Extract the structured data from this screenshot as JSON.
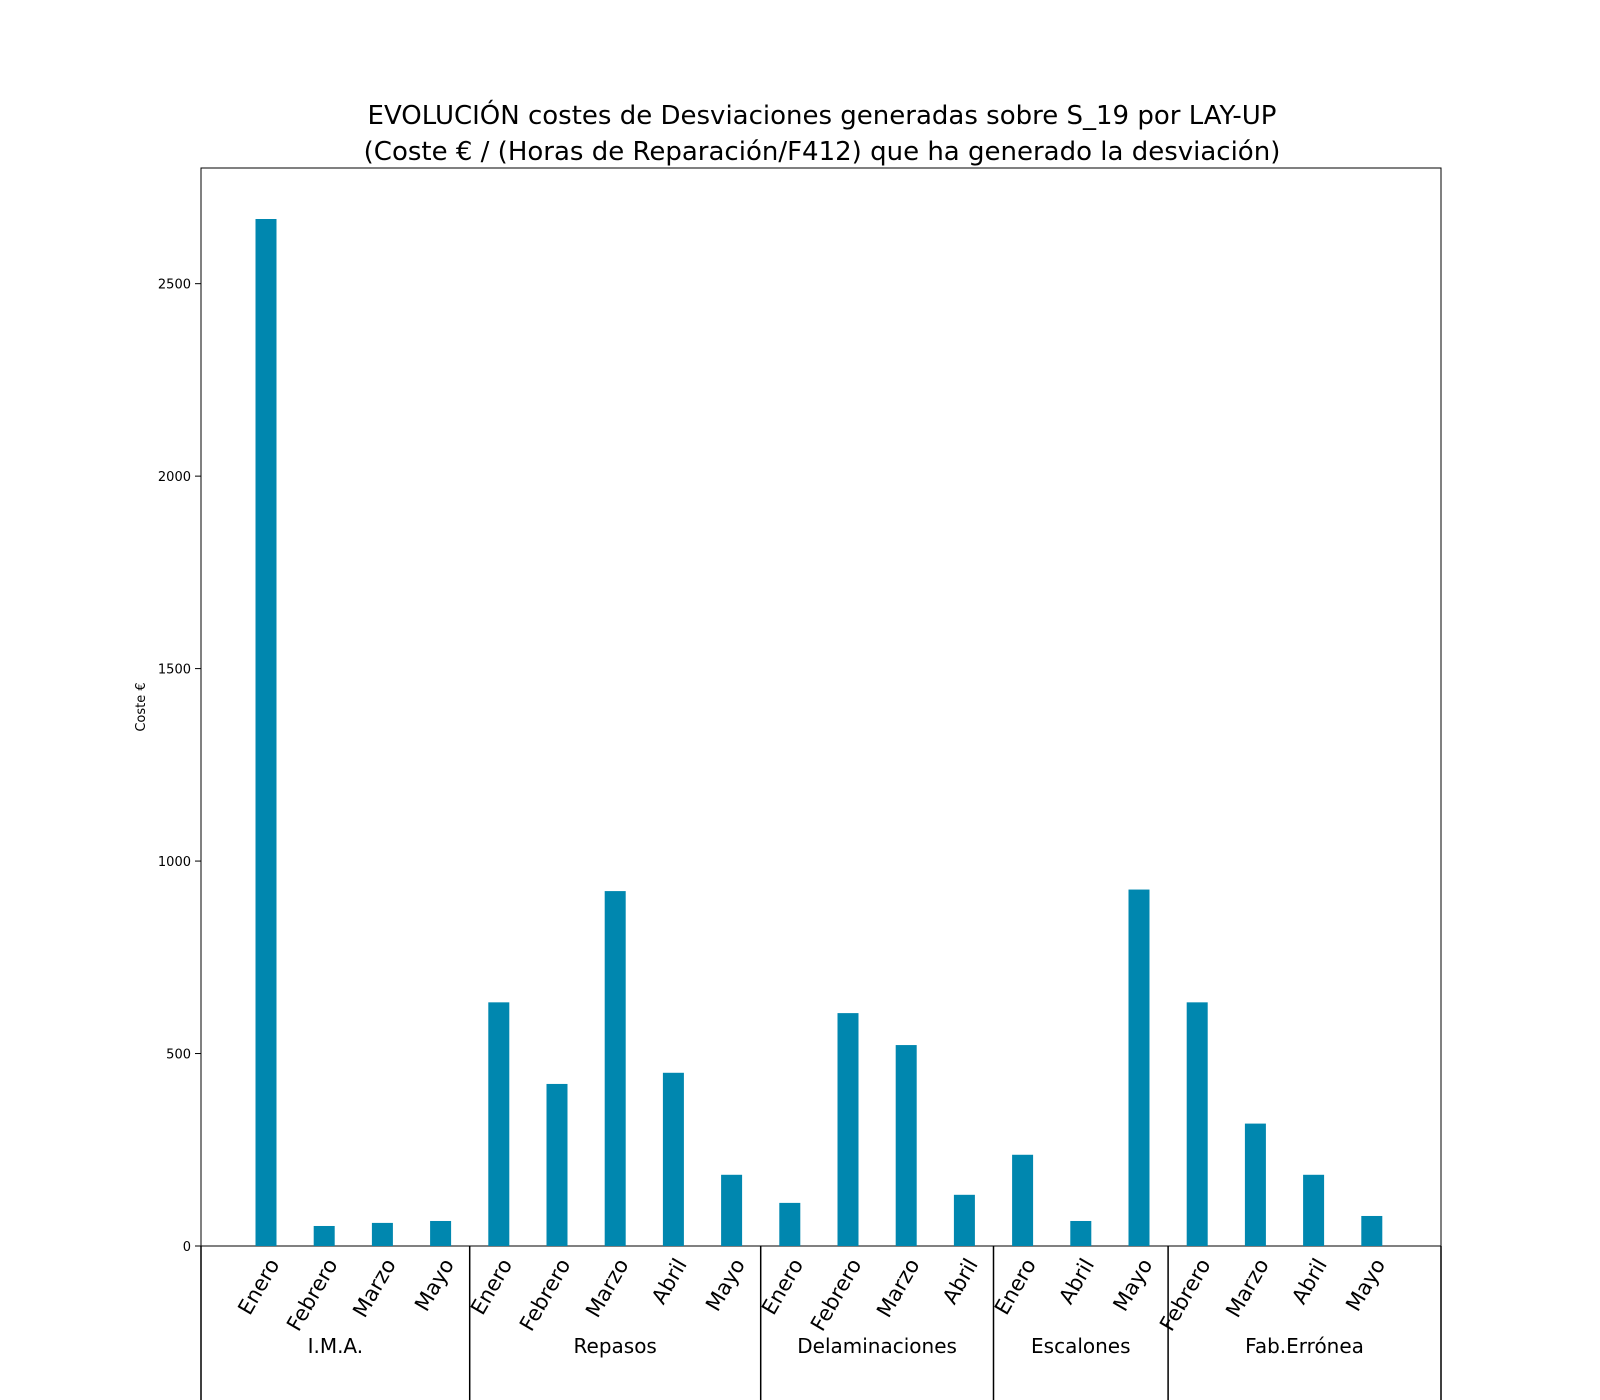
{
  "chart_data": {
    "type": "bar",
    "title": "EVOLUCIÓN costes de Desviaciones  generadas  sobre S_19 por LAY-UP",
    "subtitle": "(Coste € / (Horas de Reparación/F412) que ha generado la desviación)",
    "xlabel": "",
    "ylabel": "Coste €",
    "ylim": [
      0,
      2800
    ],
    "yticks": [
      0,
      500,
      1000,
      1500,
      2000,
      2500
    ],
    "bar_color": "#0087AF",
    "grid": false,
    "groups": [
      {
        "name": "I.M.A.",
        "categories": [
          "Enero",
          "Febrero",
          "Marzo",
          "Mayo"
        ],
        "values": [
          2668,
          52,
          60,
          65
        ]
      },
      {
        "name": "Repasos",
        "categories": [
          "Enero",
          "Febrero",
          "Marzo",
          "Abril",
          "Mayo"
        ],
        "values": [
          633,
          421,
          922,
          450,
          185
        ]
      },
      {
        "name": "Delaminaciones",
        "categories": [
          "Enero",
          "Febrero",
          "Marzo",
          "Abril"
        ],
        "values": [
          112,
          605,
          522,
          133
        ]
      },
      {
        "name": "Escalones",
        "categories": [
          "Enero",
          "Abril",
          "Mayo"
        ],
        "values": [
          237,
          65,
          926
        ]
      },
      {
        "name": "Fab.Errónea",
        "categories": [
          "Febrero",
          "Marzo",
          "Abril",
          "Mayo"
        ],
        "values": [
          633,
          318,
          185,
          78
        ]
      }
    ]
  }
}
